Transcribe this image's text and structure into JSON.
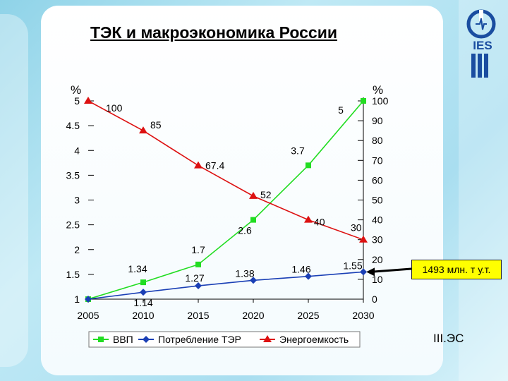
{
  "slide": {
    "title": "ТЭК и макроэкономика России",
    "callout": "1493 млн. т у.т.",
    "org_label": "III.ЭС",
    "logo_text": "IES"
  },
  "colors": {
    "gdp": "#22dd22",
    "consumption": "#1a3fb5",
    "intensity": "#dd1111"
  },
  "chart_data": {
    "type": "line",
    "x": [
      2005,
      2010,
      2015,
      2020,
      2025,
      2030
    ],
    "left_axis": {
      "label": "%",
      "ticks": [
        "1",
        "1.5",
        "2",
        "2.5",
        "3",
        "3.5",
        "4",
        "4.5",
        "5"
      ],
      "range": [
        1,
        5
      ]
    },
    "right_axis": {
      "label": "%",
      "ticks": [
        "0",
        "10",
        "20",
        "30",
        "40",
        "50",
        "60",
        "70",
        "80",
        "90",
        "100"
      ],
      "range": [
        0,
        100
      ]
    },
    "series": [
      {
        "name": "ВВП",
        "axis": "left",
        "marker": "square",
        "values": [
          1,
          1.34,
          1.7,
          2.6,
          3.7,
          5
        ],
        "labels": [
          "",
          "1.34",
          "1.7",
          "2.6",
          "3.7",
          "5"
        ]
      },
      {
        "name": "Потребление ТЭР",
        "axis": "left",
        "marker": "diamond",
        "values": [
          1,
          1.14,
          1.27,
          1.38,
          1.46,
          1.55
        ],
        "labels": [
          "",
          "1.14",
          "1.27",
          "1.38",
          "1.46",
          "1.55"
        ]
      },
      {
        "name": "Энергоемкость",
        "axis": "right",
        "marker": "triangle",
        "values": [
          100,
          85,
          67.4,
          52,
          40,
          30
        ],
        "labels": [
          "100",
          "85",
          "67.4",
          "52",
          "40",
          "30"
        ]
      }
    ],
    "legend_position": "bottom"
  }
}
